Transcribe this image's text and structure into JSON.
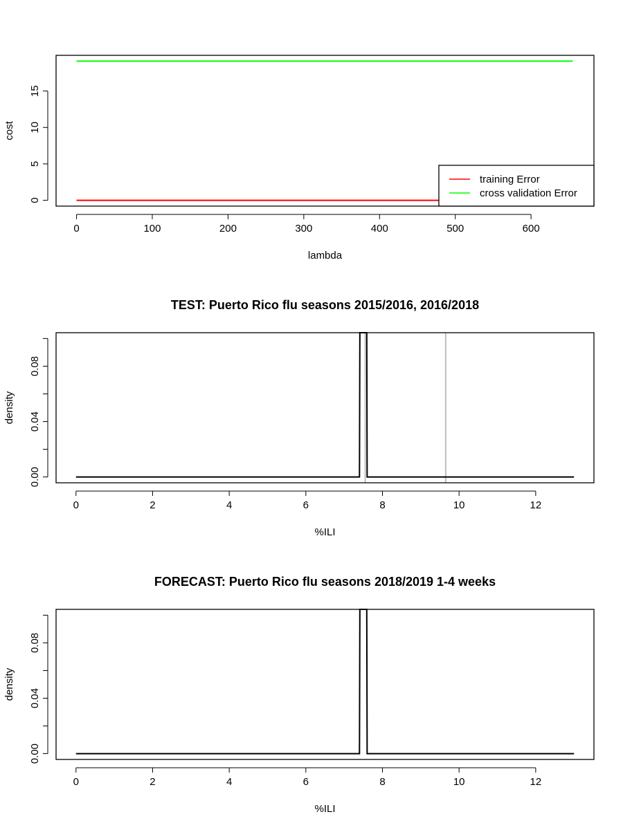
{
  "chart_data": [
    {
      "type": "line",
      "title": "",
      "xlabel": "lambda",
      "ylabel": "cost",
      "xlim": [
        -27,
        683
      ],
      "ylim": [
        -0.8,
        19.9
      ],
      "x_ticks": [
        "0",
        "100",
        "200",
        "300",
        "400",
        "500",
        "600"
      ],
      "y_ticks": [
        "0",
        "5",
        "10",
        "15"
      ],
      "legend": {
        "placement": "bottom-right",
        "entries": [
          "training Error",
          "cross validation Error"
        ]
      },
      "series": [
        {
          "name": "training Error",
          "color": "#ff0000",
          "x": [
            0,
            655
          ],
          "y": [
            0,
            0
          ]
        },
        {
          "name": "cross validation Error",
          "color": "#00ff00",
          "x": [
            0,
            655
          ],
          "y": [
            19.1,
            19.1
          ]
        }
      ]
    },
    {
      "type": "line",
      "title": "TEST: Puerto Rico  flu seasons 2015/2016, 2016/2018",
      "xlabel": "%ILI",
      "ylabel": "density",
      "xlim": [
        -0.52,
        13.52
      ],
      "ylim": [
        -0.0042,
        0.1042
      ],
      "x_ticks": [
        "0",
        "2",
        "4",
        "6",
        "8",
        "10",
        "12"
      ],
      "y_ticks": [
        "0.00",
        "0.04",
        "0.08"
      ],
      "y_minor_ticks": [
        0.02,
        0.06,
        0.1
      ],
      "reference_lines": [
        {
          "x": 7.55,
          "color": "#bebebe"
        },
        {
          "x": 9.65,
          "color": "#bebebe"
        }
      ],
      "series": [
        {
          "color": "#000000",
          "x": [
            0,
            7.4,
            7.41,
            7.59,
            7.6,
            13
          ],
          "y": [
            0,
            0,
            0.11,
            0.11,
            0,
            0
          ]
        }
      ]
    },
    {
      "type": "line",
      "title": "FORECAST: Puerto Rico flu seasons 2018/2019 1-4 weeks",
      "xlabel": "%ILI",
      "ylabel": "density",
      "xlim": [
        -0.52,
        13.52
      ],
      "ylim": [
        -0.0042,
        0.1042
      ],
      "x_ticks": [
        "0",
        "2",
        "4",
        "6",
        "8",
        "10",
        "12"
      ],
      "y_ticks": [
        "0.00",
        "0.04",
        "0.08"
      ],
      "y_minor_ticks": [
        0.02,
        0.06,
        0.1
      ],
      "reference_lines": [],
      "series": [
        {
          "color": "#000000",
          "x": [
            0,
            7.4,
            7.41,
            7.59,
            7.6,
            13
          ],
          "y": [
            0,
            0,
            0.11,
            0.11,
            0,
            0
          ]
        }
      ]
    }
  ]
}
